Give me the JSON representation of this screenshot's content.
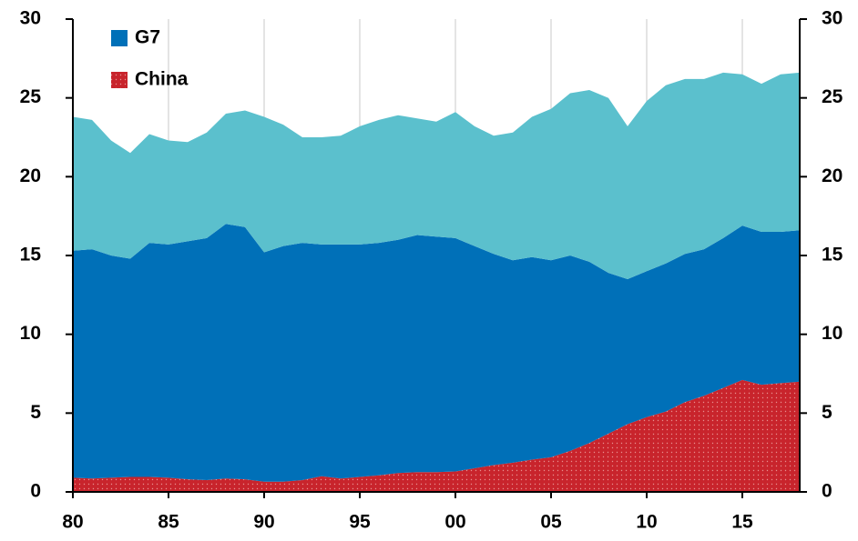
{
  "chart_data": {
    "type": "stacked-area",
    "x": [
      1980,
      1981,
      1982,
      1983,
      1984,
      1985,
      1986,
      1987,
      1988,
      1989,
      1990,
      1991,
      1992,
      1993,
      1994,
      1995,
      1996,
      1997,
      1998,
      1999,
      2000,
      2001,
      2002,
      2003,
      2004,
      2005,
      2006,
      2007,
      2008,
      2009,
      2010,
      2011,
      2012,
      2013,
      2014,
      2015,
      2016,
      2017,
      2018
    ],
    "series": [
      {
        "name": "China",
        "color": "#c8242c",
        "pattern": "dots",
        "values": [
          0.9,
          0.85,
          0.9,
          0.95,
          0.95,
          0.9,
          0.8,
          0.75,
          0.85,
          0.8,
          0.65,
          0.65,
          0.75,
          1.0,
          0.85,
          0.95,
          1.05,
          1.2,
          1.25,
          1.25,
          1.3,
          1.5,
          1.7,
          1.85,
          2.05,
          2.2,
          2.6,
          3.1,
          3.7,
          4.3,
          4.75,
          5.1,
          5.7,
          6.1,
          6.6,
          7.1,
          6.8,
          6.9,
          7.0
        ]
      },
      {
        "name": "G7",
        "color": "#0070b8",
        "values": [
          14.4,
          14.55,
          14.1,
          13.85,
          14.85,
          14.8,
          15.1,
          15.35,
          16.15,
          16.0,
          14.55,
          14.95,
          15.05,
          14.7,
          14.85,
          14.75,
          14.75,
          14.8,
          15.05,
          14.95,
          14.8,
          14.1,
          13.4,
          12.85,
          12.85,
          12.5,
          12.4,
          11.5,
          10.2,
          9.2,
          9.25,
          9.4,
          9.4,
          9.3,
          9.5,
          9.8,
          9.7,
          9.6,
          9.6
        ]
      },
      {
        "color": "#5bc0cd",
        "values": [
          8.5,
          8.2,
          7.3,
          6.7,
          6.9,
          6.6,
          6.3,
          6.7,
          7.0,
          7.4,
          8.6,
          7.7,
          6.7,
          6.8,
          6.9,
          7.5,
          7.8,
          7.9,
          7.4,
          7.3,
          8.0,
          7.6,
          7.5,
          8.1,
          8.9,
          9.6,
          10.3,
          10.9,
          11.1,
          9.7,
          10.8,
          11.3,
          11.1,
          10.8,
          10.5,
          9.6,
          9.4,
          10.0,
          10.0
        ]
      }
    ],
    "xlim": [
      1980,
      2018
    ],
    "xticks": [
      {
        "value": 1980,
        "label": "80"
      },
      {
        "value": 1985,
        "label": "85"
      },
      {
        "value": 1990,
        "label": "90"
      },
      {
        "value": 1995,
        "label": "95"
      },
      {
        "value": 2000,
        "label": "00"
      },
      {
        "value": 2005,
        "label": "05"
      },
      {
        "value": 2010,
        "label": "10"
      },
      {
        "value": 2015,
        "label": "15"
      }
    ],
    "ylim": [
      0,
      30
    ],
    "yticks": [
      0,
      5,
      10,
      15,
      20,
      25,
      30
    ],
    "y2lim": [
      0,
      30
    ],
    "y2ticks": [
      0,
      5,
      10,
      15,
      20,
      25,
      30
    ],
    "xgrid": true,
    "legend": "upper-left"
  }
}
